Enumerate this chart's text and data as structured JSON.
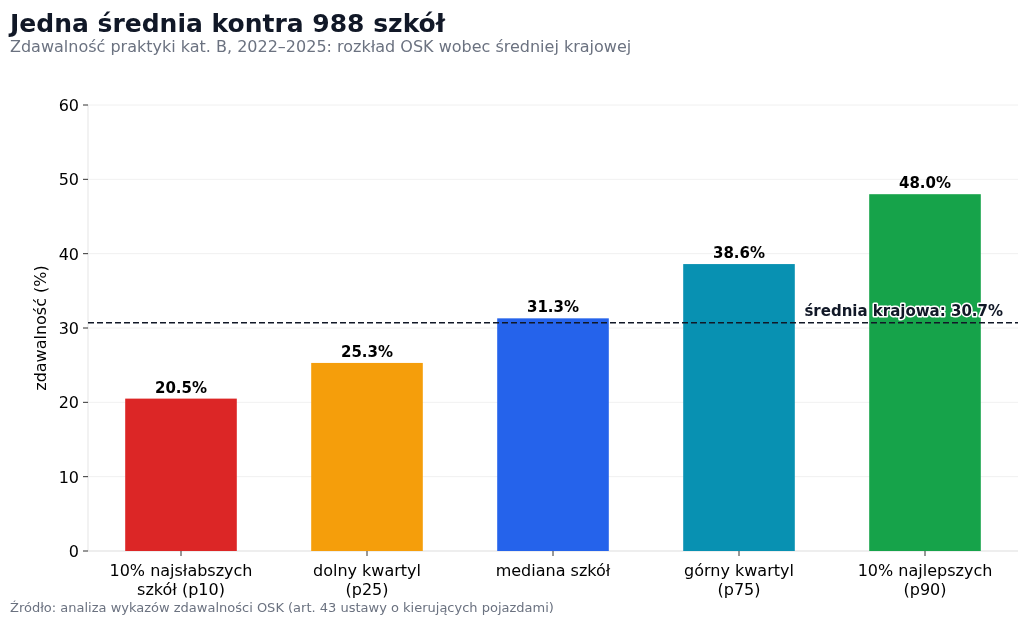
{
  "chart_data": {
    "type": "bar",
    "title": "Jedna średnia kontra 988 szkół",
    "subtitle": "Zdawalność praktyki kat. B, 2022–2025: rozkład OSK wobec średniej krajowej",
    "ylabel": "zdawalność (%)",
    "categories": [
      "10% najsłabszych szkół (p10)",
      "dolny kwartyl (p25)",
      "mediana szkół",
      "górny kwartyl (p75)",
      "10% najlepszych (p90)"
    ],
    "values": [
      20.5,
      25.3,
      31.3,
      38.6,
      48.0
    ],
    "colors": [
      "#dc2626",
      "#f59e0b",
      "#2563eb",
      "#0891b2",
      "#16a34a"
    ],
    "value_labels": [
      "20.5%",
      "25.3%",
      "31.3%",
      "38.6%",
      "48.0%"
    ],
    "ylim": [
      0,
      60
    ],
    "yticks": [
      0,
      10,
      20,
      30,
      40,
      50,
      60
    ],
    "grid": "y",
    "ref_lines": [
      {
        "axis": "y",
        "value": 30.7,
        "label": "średnia krajowa: 30.7%",
        "color": "#111827",
        "line_style": "dashed"
      }
    ],
    "annotations": [
      "Źródło: analiza wykazów zdawalności OSK (art. 43 ustawy o kierujących pojazdami)"
    ]
  }
}
